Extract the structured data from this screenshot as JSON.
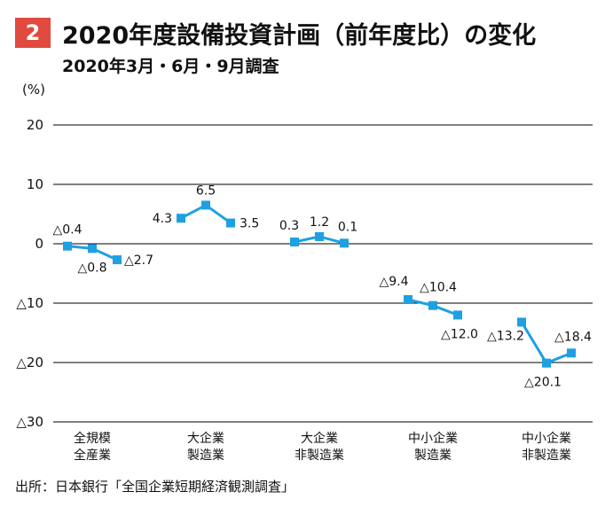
{
  "header": {
    "badge": "2",
    "title": "2020年度設備投資計画（前年度比）の変化",
    "subtitle": "2020年3月・6月・9月調査"
  },
  "source": "出所：日本銀行「全国企業短期経済観測調査」",
  "colors": {
    "badge": "#e04a3f",
    "series": "#1ea0e2",
    "grid": "#000000"
  },
  "chart_data": {
    "type": "line",
    "ylabel": "(%)",
    "ylim": [
      -30,
      20
    ],
    "yticks": [
      20,
      10,
      0,
      -10,
      -20,
      -30
    ],
    "ytick_labels": [
      "20",
      "10",
      "0",
      "△10",
      "△20",
      "△30"
    ],
    "grid": true,
    "groups": [
      {
        "category": [
          "全規模",
          "全産業"
        ],
        "values": [
          -0.4,
          -0.8,
          -2.7
        ],
        "labels": [
          "△0.4",
          "△0.8",
          "△2.7"
        ]
      },
      {
        "category": [
          "大企業",
          "製造業"
        ],
        "values": [
          4.3,
          6.5,
          3.5
        ],
        "labels": [
          "4.3",
          "6.5",
          "3.5"
        ]
      },
      {
        "category": [
          "大企業",
          "非製造業"
        ],
        "values": [
          0.3,
          1.2,
          0.1
        ],
        "labels": [
          "0.3",
          "1.2",
          "0.1"
        ]
      },
      {
        "category": [
          "中小企業",
          "製造業"
        ],
        "values": [
          -9.4,
          -10.4,
          -12.0
        ],
        "labels": [
          "△9.4",
          "△10.4",
          "△12.0"
        ]
      },
      {
        "category": [
          "中小企業",
          "非製造業"
        ],
        "values": [
          -13.2,
          -20.1,
          -18.4
        ],
        "labels": [
          "△13.2",
          "△20.1",
          "△18.4"
        ]
      }
    ]
  }
}
